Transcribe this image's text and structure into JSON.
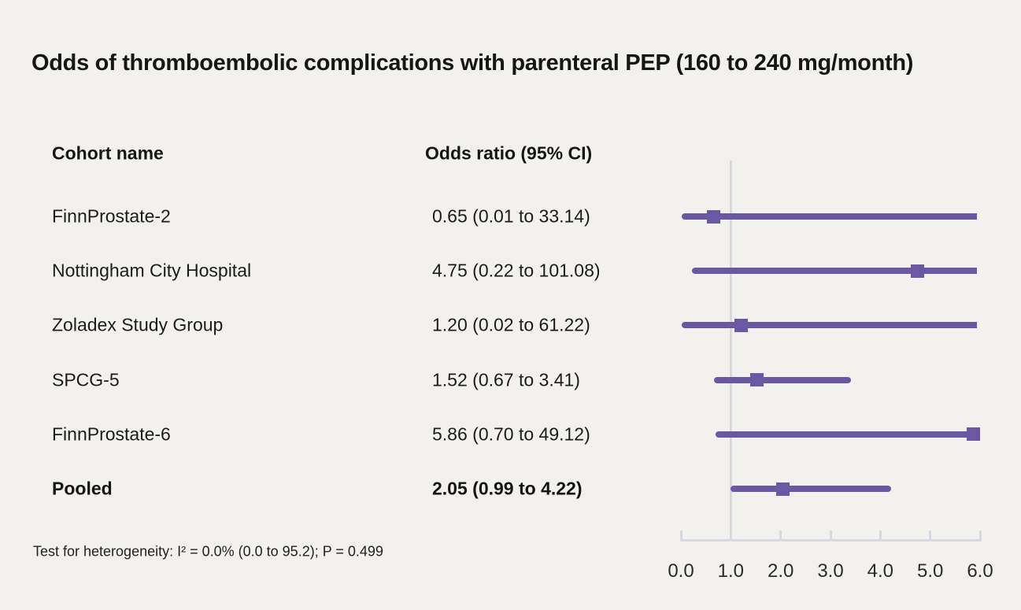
{
  "figure": {
    "title": "Odds of thromboembolic complications with parenteral PEP (160 to 240 mg/month)",
    "columns": {
      "cohort": "Cohort name",
      "odds_ratio": "Odds ratio (95% CI)"
    },
    "footnote": "Test for heterogeneity: I² = 0.0% (0.0 to 95.2); P = 0.499"
  },
  "chart_data": {
    "type": "scatter",
    "subtype": "forest-plot",
    "title": "Odds of thromboembolic complications with parenteral PEP (160 to 240 mg/month)",
    "xlabel": "",
    "xlim": [
      0,
      6
    ],
    "x_ticks": [
      "0.0",
      "1.0",
      "2.0",
      "3.0",
      "4.0",
      "5.0",
      "6.0"
    ],
    "reference_line_x": 1.0,
    "grid": false,
    "legend": "none",
    "rows": [
      {
        "label": "FinnProstate-2",
        "or_text": "0.65 (0.01 to 33.14)",
        "or": 0.65,
        "ci_low": 0.01,
        "ci_high": 33.14,
        "pooled": false
      },
      {
        "label": "Nottingham City Hospital",
        "or_text": "4.75 (0.22 to 101.08)",
        "or": 4.75,
        "ci_low": 0.22,
        "ci_high": 101.08,
        "pooled": false
      },
      {
        "label": "Zoladex Study Group",
        "or_text": "1.20 (0.02 to 61.22)",
        "or": 1.2,
        "ci_low": 0.02,
        "ci_high": 61.22,
        "pooled": false
      },
      {
        "label": "SPCG-5",
        "or_text": "1.52 (0.67 to 3.41)",
        "or": 1.52,
        "ci_low": 0.67,
        "ci_high": 3.41,
        "pooled": false
      },
      {
        "label": "FinnProstate-6",
        "or_text": "5.86 (0.70 to 49.12)",
        "or": 5.86,
        "ci_low": 0.7,
        "ci_high": 49.12,
        "pooled": false
      },
      {
        "label": "Pooled",
        "or_text": "2.05 (0.99 to 4.22)",
        "or": 2.05,
        "ci_low": 0.99,
        "ci_high": 4.22,
        "pooled": true
      }
    ],
    "colors": {
      "marker": "#6a58a4",
      "ci_line": "#6a58a4",
      "axis": "#d6dade",
      "background": "#f2f1ee",
      "text": "#1c1c1c"
    }
  }
}
